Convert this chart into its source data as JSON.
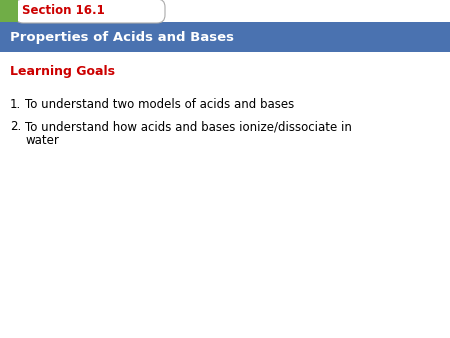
{
  "section_label": "Section 16.1",
  "section_tab_text_color": "#cc0000",
  "header_text": "Properties of Acids and Bases",
  "header_bg_color": "#4a72b0",
  "header_text_color": "#ffffff",
  "learning_goals_label": "Learning Goals",
  "learning_goals_color": "#cc0000",
  "body_bg_color": "#ffffff",
  "green_rect_color": "#70ad47",
  "tab_bg_color": "#ffffff",
  "tab_border_color": "#aaaaaa",
  "item1": "To understand two models of acids and bases",
  "item2": "To understand how acids and bases ionize/dissociate in",
  "item2b": "water",
  "item_color": "#000000",
  "fig_width": 4.5,
  "fig_height": 3.38,
  "dpi": 100
}
